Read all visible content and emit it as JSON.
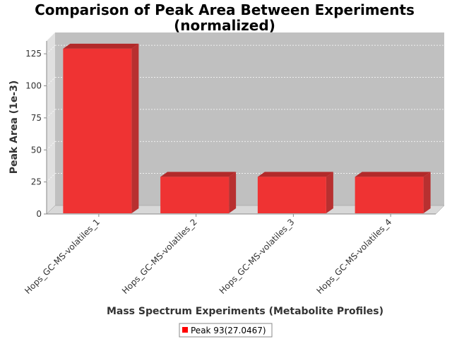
{
  "chart_data": {
    "type": "bar",
    "title_line1": "Comparison of Peak Area Between Experiments",
    "title_line2": "(normalized)",
    "xlabel": "Mass Spectrum Experiments (Metabolite Profiles)",
    "ylabel": "Peak Area (1e-3)",
    "categories": [
      "Hops_GC-MS-volatiles_1",
      "Hops_GC-MS-volatiles_2",
      "Hops_GC-MS-volatiles_3",
      "Hops_GC-MS-volatiles_4"
    ],
    "series": [
      {
        "name": "Peak 93(27.0467)",
        "values": [
          129,
          29,
          29,
          29
        ]
      }
    ],
    "yticks": [
      0,
      25,
      50,
      75,
      100,
      125
    ],
    "ylim": [
      0,
      135
    ],
    "grid": true,
    "legend_position": "bottom",
    "colors": {
      "bar_front": "#ef3333",
      "bar_top": "#b22a2a",
      "bar_side": "#b83030",
      "plot_back": "#c0c0c0",
      "plot_floor": "#d8d8d8",
      "plot_left_wall": "#e0e0e0"
    }
  }
}
